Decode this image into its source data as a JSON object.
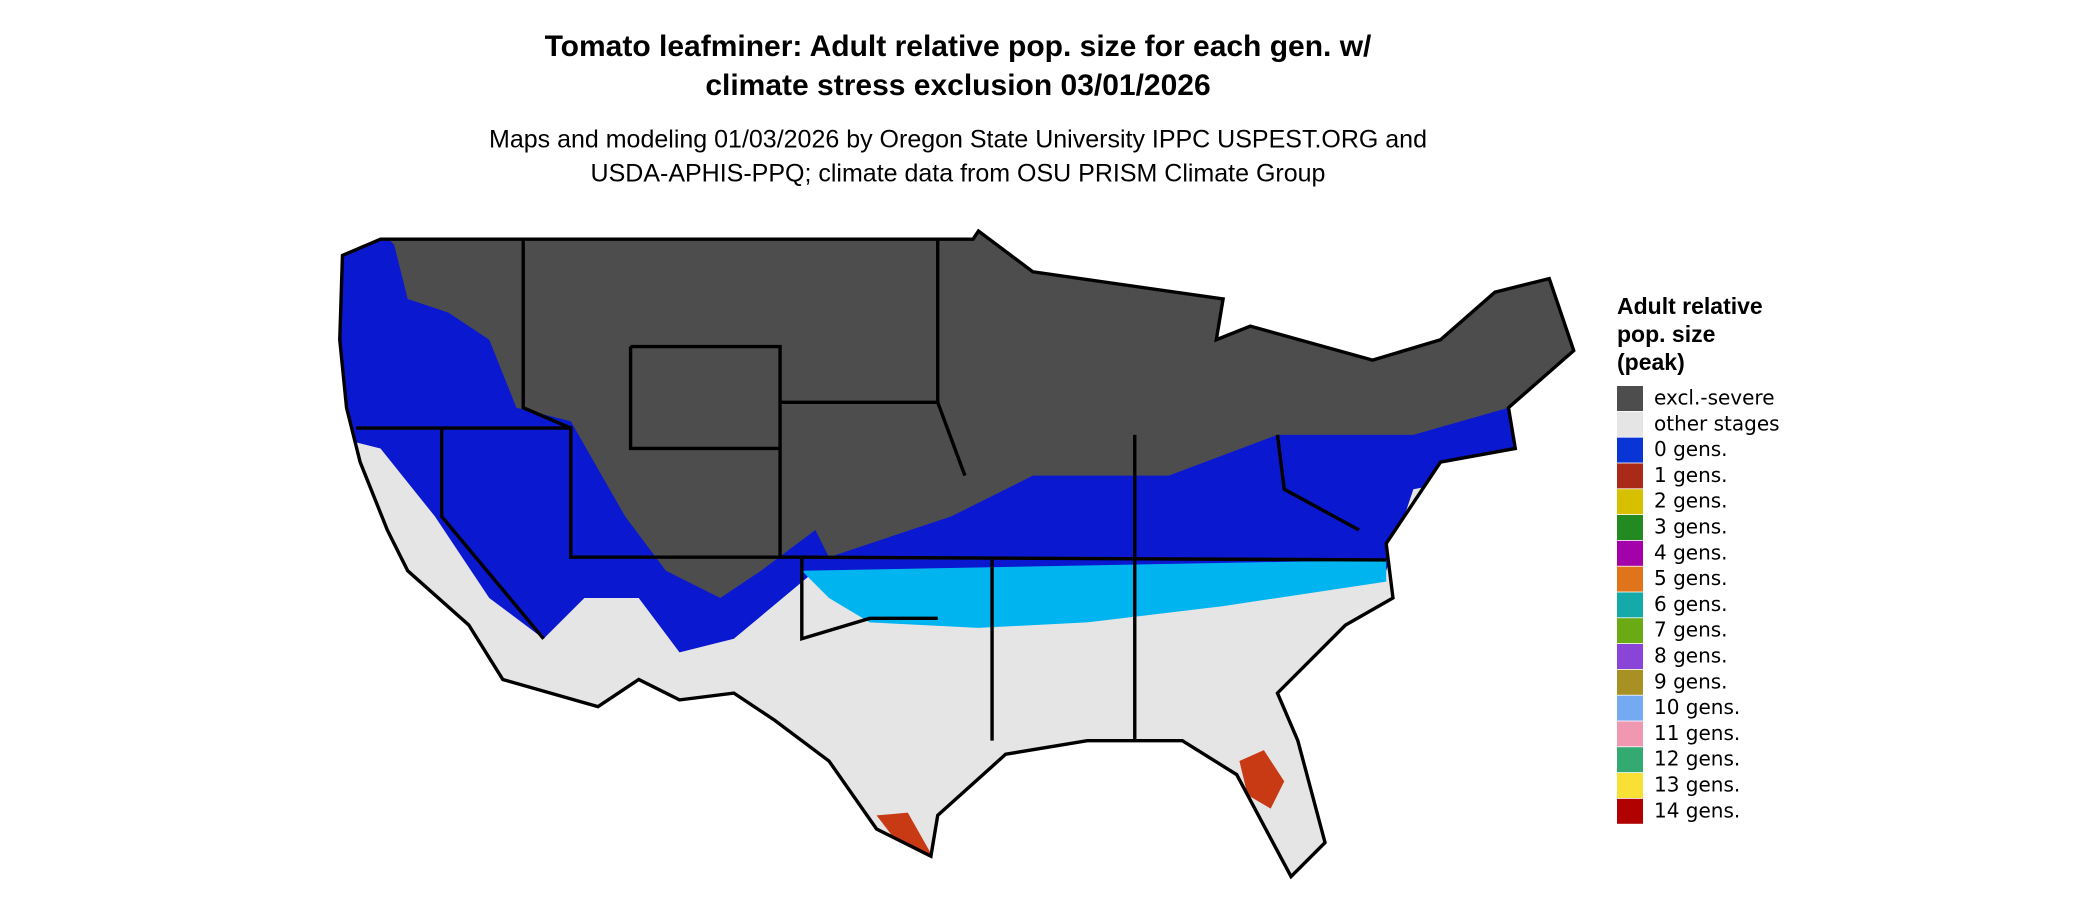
{
  "title": [
    "Tomato leafminer: Adult relative pop. size for each gen. w/",
    "climate stress exclusion 03/01/2026"
  ],
  "subtitle": [
    "Maps and modeling 01/03/2026 by Oregon State University IPPC USPEST.ORG and",
    "USDA-APHIS-PPQ; climate data from OSU PRISM Climate Group"
  ],
  "legend": {
    "title": [
      "Adult relative",
      "pop. size",
      "(peak)"
    ],
    "items": [
      {
        "label": "excl.-severe",
        "color": "#4d4d4d"
      },
      {
        "label": "other stages",
        "color": "#e5e5e5"
      },
      {
        "label": "0 gens.",
        "color": "#0a35d6"
      },
      {
        "label": "1 gens.",
        "color": "#aa2a1a"
      },
      {
        "label": "2 gens.",
        "color": "#d6c000"
      },
      {
        "label": "3 gens.",
        "color": "#238a22"
      },
      {
        "label": "4 gens.",
        "color": "#a200a8"
      },
      {
        "label": "5 gens.",
        "color": "#e0741a"
      },
      {
        "label": "6 gens.",
        "color": "#14aaaa"
      },
      {
        "label": "7 gens.",
        "color": "#6aaa14"
      },
      {
        "label": "8 gens.",
        "color": "#8a44d8"
      },
      {
        "label": "9 gens.",
        "color": "#a89022"
      },
      {
        "label": "10 gens.",
        "color": "#74aaf2"
      },
      {
        "label": "11 gens.",
        "color": "#f098b2"
      },
      {
        "label": "12 gens.",
        "color": "#32aa72"
      },
      {
        "label": "13 gens.",
        "color": "#f8e034"
      },
      {
        "label": "14 gens.",
        "color": "#b00000"
      }
    ]
  }
}
